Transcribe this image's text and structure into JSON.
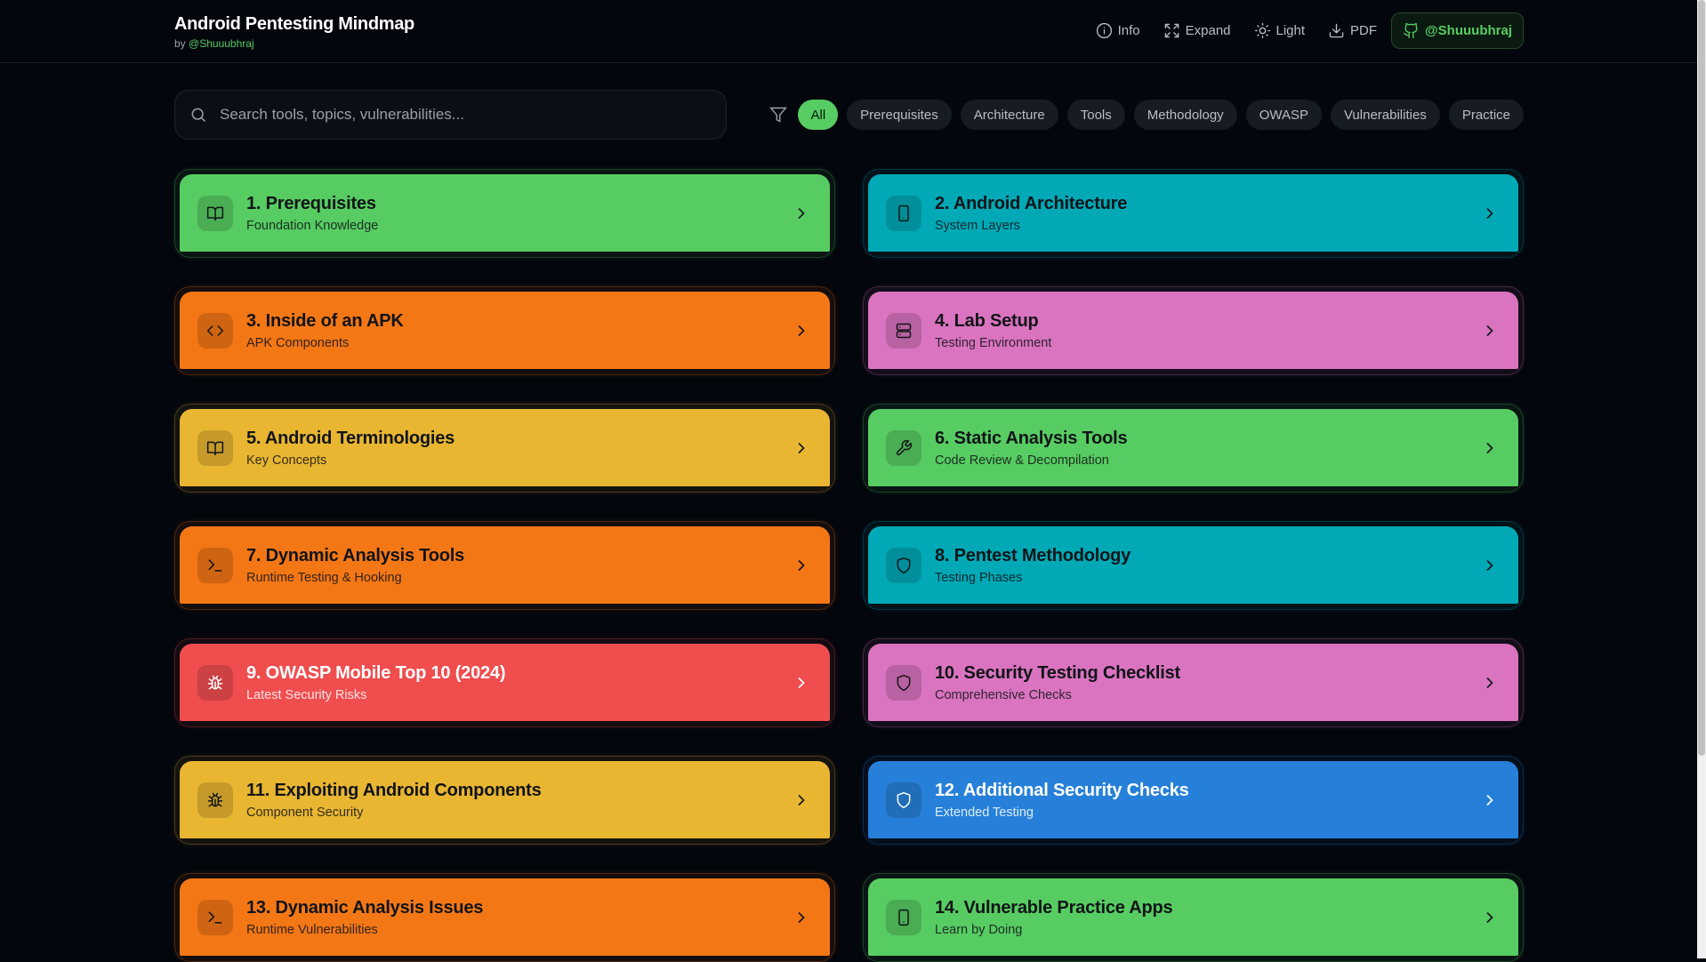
{
  "header": {
    "title": "Android Pentesting Mindmap",
    "by_prefix": "by",
    "author": "@Shuuubhraj",
    "actions": [
      {
        "label": "Info",
        "icon": "info-icon"
      },
      {
        "label": "Expand",
        "icon": "expand-icon"
      },
      {
        "label": "Light",
        "icon": "sun-icon"
      },
      {
        "label": "PDF",
        "icon": "download-icon"
      }
    ],
    "github": {
      "label": "@Shuuubhraj",
      "icon": "github-icon"
    }
  },
  "search": {
    "placeholder": "Search tools, topics, vulnerabilities...",
    "value": ""
  },
  "filters": {
    "active": "All",
    "items": [
      "All",
      "Prerequisites",
      "Architecture",
      "Tools",
      "Methodology",
      "OWASP",
      "Vulnerabilities",
      "Practice"
    ]
  },
  "colors": {
    "accent": "#57cc62",
    "green": "#57cc62",
    "teal": "#00a9b5",
    "orange": "#f47716",
    "pink": "#da74c0",
    "yellow": "#e9b632",
    "red": "#f04d4f",
    "blue": "#2680d9",
    "background": "#03060d"
  },
  "cards": [
    {
      "title": "1. Prerequisites",
      "subtitle": "Foundation Knowledge",
      "icon": "book",
      "color": "green"
    },
    {
      "title": "2. Android Architecture",
      "subtitle": "System Layers",
      "icon": "smartphone",
      "color": "teal"
    },
    {
      "title": "3. Inside of an APK",
      "subtitle": "APK Components",
      "icon": "code",
      "color": "orange"
    },
    {
      "title": "4. Lab Setup",
      "subtitle": "Testing Environment",
      "icon": "server",
      "color": "pink"
    },
    {
      "title": "5. Android Terminologies",
      "subtitle": "Key Concepts",
      "icon": "book",
      "color": "yellow"
    },
    {
      "title": "6. Static Analysis Tools",
      "subtitle": "Code Review & Decompilation",
      "icon": "wrench",
      "color": "green"
    },
    {
      "title": "7. Dynamic Analysis Tools",
      "subtitle": "Runtime Testing & Hooking",
      "icon": "terminal",
      "color": "orange"
    },
    {
      "title": "8. Pentest Methodology",
      "subtitle": "Testing Phases",
      "icon": "shield",
      "color": "teal"
    },
    {
      "title": "9. OWASP Mobile Top 10 (2024)",
      "subtitle": "Latest Security Risks",
      "icon": "bug",
      "color": "red",
      "light_text": true
    },
    {
      "title": "10. Security Testing Checklist",
      "subtitle": "Comprehensive Checks",
      "icon": "shield",
      "color": "pink"
    },
    {
      "title": "11. Exploiting Android Components",
      "subtitle": "Component Security",
      "icon": "bug",
      "color": "yellow"
    },
    {
      "title": "12. Additional Security Checks",
      "subtitle": "Extended Testing",
      "icon": "shield",
      "color": "blue",
      "light_text": true
    },
    {
      "title": "13. Dynamic Analysis Issues",
      "subtitle": "Runtime Vulnerabilities",
      "icon": "terminal",
      "color": "orange"
    },
    {
      "title": "14. Vulnerable Practice Apps",
      "subtitle": "Learn by Doing",
      "icon": "smartphone",
      "color": "green"
    }
  ]
}
